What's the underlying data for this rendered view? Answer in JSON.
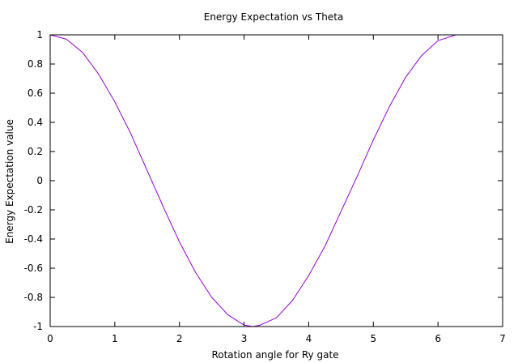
{
  "chart_data": {
    "type": "line",
    "title": "Energy Expectation vs Theta",
    "xlabel": "Rotation angle for Ry gate",
    "ylabel": "Energy Expectation value",
    "xlim": [
      0,
      7
    ],
    "ylim": [
      -1,
      1
    ],
    "xticks": [
      0,
      1,
      2,
      3,
      4,
      5,
      6,
      7
    ],
    "xtick_labels": [
      "0",
      "1",
      "2",
      "3",
      "4",
      "5",
      "6",
      "7"
    ],
    "yticks": [
      -1,
      -0.8,
      -0.6,
      -0.4,
      -0.2,
      0,
      0.2,
      0.4,
      0.6,
      0.8,
      1
    ],
    "ytick_labels": [
      "-1",
      "-0.8",
      "-0.6",
      "-0.4",
      "-0.2",
      "0",
      "0.2",
      "0.4",
      "0.6",
      "0.8",
      "1"
    ],
    "grid": false,
    "legend": "none",
    "series": [
      {
        "color": "#9400d3",
        "x": [
          0,
          0.25,
          0.5,
          0.75,
          1.0,
          1.25,
          1.5,
          1.75,
          2.0,
          2.25,
          2.5,
          2.75,
          3.0,
          3.14,
          3.25,
          3.5,
          3.75,
          4.0,
          4.25,
          4.5,
          4.75,
          5.0,
          5.25,
          5.5,
          5.75,
          6.0,
          6.28
        ],
        "y": [
          1,
          0.97,
          0.88,
          0.73,
          0.54,
          0.32,
          0.07,
          -0.18,
          -0.42,
          -0.63,
          -0.8,
          -0.92,
          -0.99,
          -1,
          -0.99,
          -0.94,
          -0.82,
          -0.65,
          -0.45,
          -0.21,
          0.03,
          0.28,
          0.51,
          0.71,
          0.86,
          0.96,
          1
        ]
      }
    ]
  }
}
